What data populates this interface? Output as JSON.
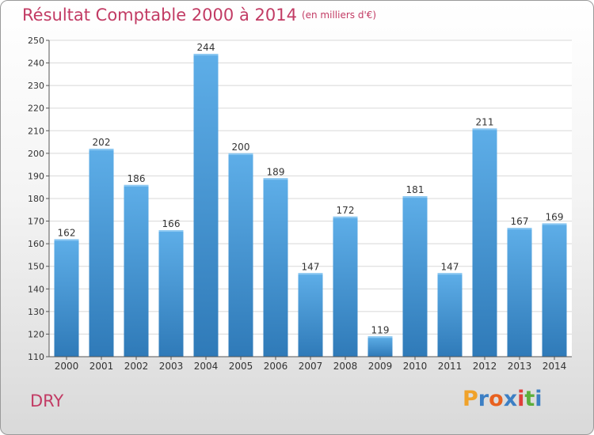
{
  "title": "Résultat Comptable 2000 à 2014",
  "subtitle": "(en milliers d'€)",
  "place": "DRY",
  "logo": {
    "text": "Proxiti",
    "letter_colors": [
      "#f0a22a",
      "#3c7fc4",
      "#e8611f",
      "#3c7fc4",
      "#e03f3a",
      "#5cae3c",
      "#3c7fc4"
    ]
  },
  "colors": {
    "title": "#c23b64",
    "bar_top": "#5eaee8",
    "bar_bottom": "#2f7ab8",
    "grid": "#d8d8d8",
    "axis": "#555555"
  },
  "chart_data": {
    "type": "bar",
    "title": "Résultat Comptable 2000 à 2014",
    "subtitle": "(en milliers d'€)",
    "xlabel": "",
    "ylabel": "",
    "categories": [
      "2000",
      "2001",
      "2002",
      "2003",
      "2004",
      "2005",
      "2006",
      "2007",
      "2008",
      "2009",
      "2010",
      "2011",
      "2012",
      "2013",
      "2014"
    ],
    "values": [
      162,
      202,
      186,
      166,
      244,
      200,
      189,
      147,
      172,
      119,
      181,
      147,
      211,
      167,
      169
    ],
    "ylim": [
      110,
      250
    ],
    "yticks": [
      110,
      120,
      130,
      140,
      150,
      160,
      170,
      180,
      190,
      200,
      210,
      220,
      230,
      240,
      250
    ],
    "grid": true,
    "data_labels": true
  }
}
